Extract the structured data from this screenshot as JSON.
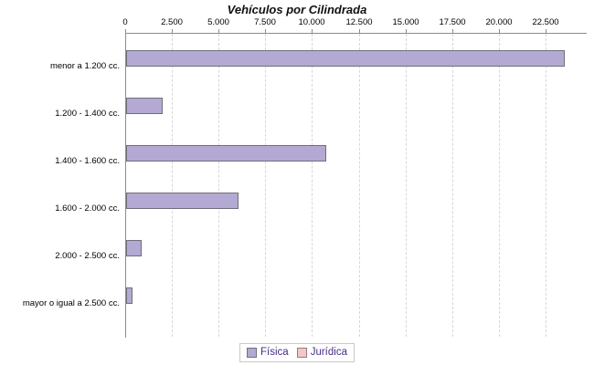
{
  "chart": {
    "title": "Vehículos por Cilindrada",
    "legend": {
      "items": [
        {
          "label": "Física",
          "fill": "#b3a9d3",
          "border": "#6f6f78"
        },
        {
          "label": "Jurídica",
          "fill": "#f6c6c7",
          "border": "#937b80"
        }
      ]
    }
  },
  "colors": {
    "bar_fill": "#b3a9d3",
    "bar_border": "#6f6f78",
    "juridica_fill": "#f6c6c7",
    "juridica_border": "#937b80",
    "axis": "#8c8c8c",
    "gridline": "#d7d7db",
    "legend_text": "#462d87",
    "title_text": "#111111",
    "tick_text": "#000000"
  },
  "chart_data": {
    "type": "bar",
    "orientation": "horizontal",
    "title": "Vehículos por Cilindrada",
    "categories": [
      "menor a 1.200 cc.",
      "1.200 - 1.400 cc.",
      "1.400 - 1.600 cc.",
      "1.600 - 2.000 cc.",
      "2.000 - 2.500 cc.",
      "mayor o igual a 2.500 cc."
    ],
    "series": [
      {
        "name": "Física",
        "color": "#b3a9d3",
        "values": [
          23500,
          1950,
          10700,
          6000,
          850,
          350
        ]
      },
      {
        "name": "Jurídica",
        "color": "#f6c6c7",
        "values": [
          0,
          0,
          0,
          0,
          0,
          0
        ]
      }
    ],
    "xlabel": "",
    "ylabel": "",
    "xlim": [
      0,
      24500
    ],
    "x_ticks": [
      0,
      2500,
      5000,
      7500,
      10000,
      12500,
      15000,
      17500,
      20000,
      22500
    ],
    "x_tick_labels": [
      "0",
      "2.500",
      "5.000",
      "7.500",
      "10.000",
      "12.500",
      "15.000",
      "17.500",
      "20.000",
      "22.500"
    ],
    "grid": "vertical-dashed",
    "axis_position": "top",
    "legend_position": "bottom"
  }
}
